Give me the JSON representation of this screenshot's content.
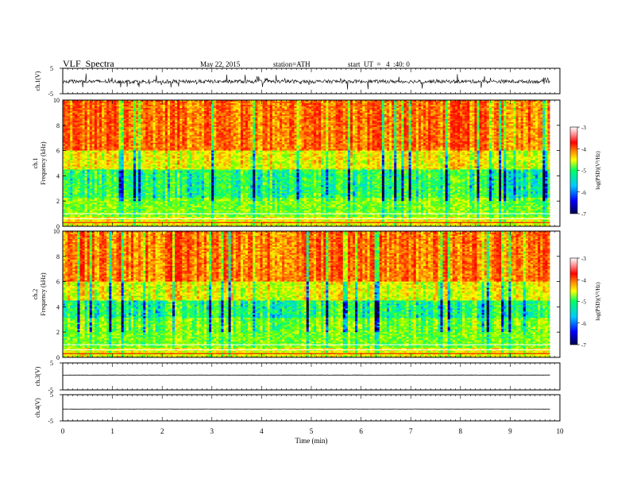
{
  "header": {
    "title": "VLF  Spectra",
    "date": "May 22, 2015",
    "station": "station=ATH",
    "start": "start  UT  =   4  :40: 0"
  },
  "chart_data": [
    {
      "type": "line",
      "panel": "ch1-waveform",
      "ylabel": "ch.1(V)",
      "y_ticks": [
        "5",
        "-5"
      ],
      "ylim": [
        -5,
        5
      ],
      "xlim": [
        0,
        10
      ],
      "x_end": 9.8,
      "description_level": 0.0,
      "trace": "noisy signal around -0.2 V with spikes"
    },
    {
      "type": "heatmap",
      "panel": "ch1-spectrogram",
      "ylabel": "ch.1\nFrequency  (kHz)",
      "ylabel_lines": [
        "ch.1",
        "Frequency  (kHz)"
      ],
      "y_ticks": [
        "10",
        "8",
        "6",
        "4",
        "2",
        "0"
      ],
      "y_tick_values": [
        10,
        8,
        6,
        4,
        2,
        0
      ],
      "ylim": [
        0,
        10
      ],
      "xlim": [
        0,
        10
      ],
      "x_end": 9.8,
      "colorbar": {
        "label": "log(PSD)(V²/Hz)",
        "ticks": [
          "-3",
          "-4",
          "-5",
          "-6",
          "-7"
        ],
        "range": [
          -7,
          -3
        ]
      }
    },
    {
      "type": "heatmap",
      "panel": "ch2-spectrogram",
      "ylabel": "ch.2\nFrequency  (kHz)",
      "ylabel_lines": [
        "ch.2",
        "Frequency  (kHz)"
      ],
      "y_ticks": [
        "10",
        "8",
        "6",
        "4",
        "2",
        "0"
      ],
      "y_tick_values": [
        10,
        8,
        6,
        4,
        2,
        0
      ],
      "ylim": [
        0,
        10
      ],
      "xlim": [
        0,
        10
      ],
      "x_end": 9.8,
      "colorbar": {
        "label": "log(PSD)(V²/Hz)",
        "ticks": [
          "-3",
          "-4",
          "-5",
          "-6",
          "-7"
        ],
        "range": [
          -7,
          -3
        ]
      }
    },
    {
      "type": "line",
      "panel": "ch3-waveform",
      "ylabel": "ch.3(V)",
      "y_ticks": [
        "5",
        "-5"
      ],
      "ylim": [
        -5,
        5
      ],
      "xlim": [
        0,
        10
      ],
      "x_end": 9.8,
      "level": 0.5
    },
    {
      "type": "line",
      "panel": "ch4-waveform",
      "ylabel": "ch.4(V)",
      "y_ticks": [
        "5",
        "-5"
      ],
      "ylim": [
        -5,
        5
      ],
      "xlim": [
        0,
        10
      ],
      "x_end": 9.8,
      "level": -0.5
    }
  ],
  "x_axis": {
    "label": "Time  (min)",
    "ticks": [
      "0",
      "1",
      "2",
      "3",
      "4",
      "5",
      "6",
      "7",
      "8",
      "9",
      "10"
    ]
  },
  "colors": {
    "scale": [
      "#00003c",
      "#0000ff",
      "#00c8ff",
      "#00ff64",
      "#ffff00",
      "#ff8c00",
      "#ff0000",
      "#ff9696",
      "#ffffff"
    ]
  }
}
